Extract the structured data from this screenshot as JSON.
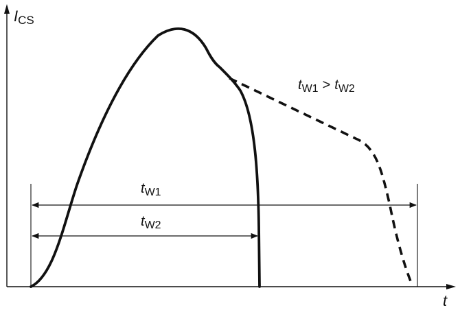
{
  "axes": {
    "y_label_main": "I",
    "y_label_sub": "CS",
    "x_label": "t"
  },
  "annotation": {
    "t1_main": "t",
    "t1_sub": "W1",
    "gt": ">",
    "t2_main": "t",
    "t2_sub": "W2"
  },
  "intervals": {
    "tw1_main": "t",
    "tw1_sub": "W1",
    "tw2_main": "t",
    "tw2_sub": "W2"
  },
  "curves": {
    "solid": "short pulse width t_W2 (solid line)",
    "dashed": "long pulse width t_W1 (dashed line)"
  },
  "colors": {
    "ink": "#111111",
    "background": "#ffffff"
  }
}
